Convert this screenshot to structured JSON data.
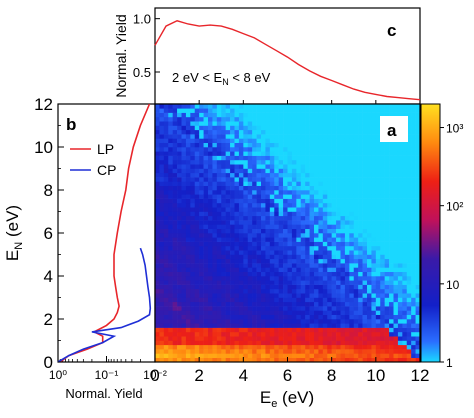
{
  "figure": {
    "panel_a": {
      "label": "a"
    },
    "panel_b": {
      "label": "b",
      "xlabel": "Normal. Yield"
    },
    "panel_c": {
      "label": "c",
      "ylabel": "Normal. Yield",
      "annotation": "2 eV < E_N < 8 eV"
    },
    "ylabel_main": "E_N (eV)",
    "xlabel_main": "E_e (eV)",
    "colorbar_ticks": [
      "1",
      "10",
      "10²",
      "10³"
    ]
  },
  "chart_data": [
    {
      "id": "panel_c",
      "type": "line",
      "title": "",
      "ylabel": "Normal. Yield",
      "xlim": [
        0,
        12
      ],
      "ylim": [
        0.2,
        1.1
      ],
      "yticks": [
        "0.5",
        "1.0"
      ],
      "annotation": "2 eV < E_N < 8 eV",
      "series": [
        {
          "color": "#e8262b",
          "x": [
            0,
            0.5,
            1,
            1.5,
            2,
            2.5,
            3,
            3.5,
            4,
            4.5,
            5,
            5.5,
            6,
            6.5,
            7,
            7.5,
            8,
            8.5,
            9,
            9.5,
            10,
            10.5,
            11,
            11.5,
            12
          ],
          "y": [
            0.75,
            0.93,
            0.98,
            0.95,
            0.93,
            0.94,
            0.93,
            0.9,
            0.86,
            0.82,
            0.76,
            0.7,
            0.64,
            0.57,
            0.51,
            0.46,
            0.42,
            0.38,
            0.34,
            0.31,
            0.29,
            0.27,
            0.26,
            0.25,
            0.24
          ]
        }
      ]
    },
    {
      "id": "panel_b",
      "type": "line",
      "xlabel": "Normal. Yield",
      "xscale": "log",
      "x_reversed": true,
      "xlim": [
        1,
        0.01
      ],
      "xticks": [
        "10⁰",
        "10⁻¹",
        "10⁻²"
      ],
      "ylim": [
        0,
        12
      ],
      "legend_position": "upper-left",
      "series": [
        {
          "name": "LP",
          "color": "#e8262b",
          "e_n": [
            0,
            0.3,
            0.6,
            0.9,
            1.2,
            1.4,
            1.7,
            2.0,
            2.3,
            2.6,
            3.0,
            3.5,
            4.0,
            4.5,
            5.0,
            6.0,
            7.0,
            8.0,
            9.0,
            10.0,
            11.0,
            12.0
          ],
          "yield": [
            0.9,
            0.6,
            0.25,
            0.12,
            0.12,
            0.18,
            0.1,
            0.07,
            0.06,
            0.055,
            0.06,
            0.065,
            0.07,
            0.07,
            0.07,
            0.06,
            0.05,
            0.04,
            0.035,
            0.028,
            0.02,
            0.013
          ]
        },
        {
          "name": "CP",
          "color": "#1f2fd6",
          "e_n": [
            0,
            0.3,
            0.6,
            0.9,
            1.2,
            1.4,
            1.6,
            1.9,
            2.2,
            2.5,
            3.0,
            3.5,
            4.0,
            4.5,
            5.0,
            5.3
          ],
          "yield": [
            1.0,
            0.6,
            0.3,
            0.12,
            0.07,
            0.2,
            0.05,
            0.022,
            0.013,
            0.0125,
            0.013,
            0.014,
            0.015,
            0.016,
            0.018,
            0.02
          ]
        }
      ]
    },
    {
      "id": "panel_a",
      "type": "heatmap",
      "xlabel": "E_e (eV)",
      "ylabel": "E_N (eV)",
      "xlim": [
        0,
        12
      ],
      "ylim": [
        0,
        12
      ],
      "xticks": [
        0,
        2,
        4,
        6,
        8,
        10,
        12
      ],
      "yticks": [
        0,
        2,
        4,
        6,
        8,
        10,
        12
      ],
      "colorscale": "log",
      "colorbar_range": [
        1,
        2000
      ],
      "colorbar_ticks": [
        "1",
        "10",
        "10²",
        "10³"
      ],
      "features": {
        "bright_band_e_n": [
          0.8,
          1.6
        ],
        "diagonal_lines_e_total": [
          3.5,
          5.0,
          6.5,
          8.0,
          9.5,
          11.0
        ]
      }
    }
  ]
}
